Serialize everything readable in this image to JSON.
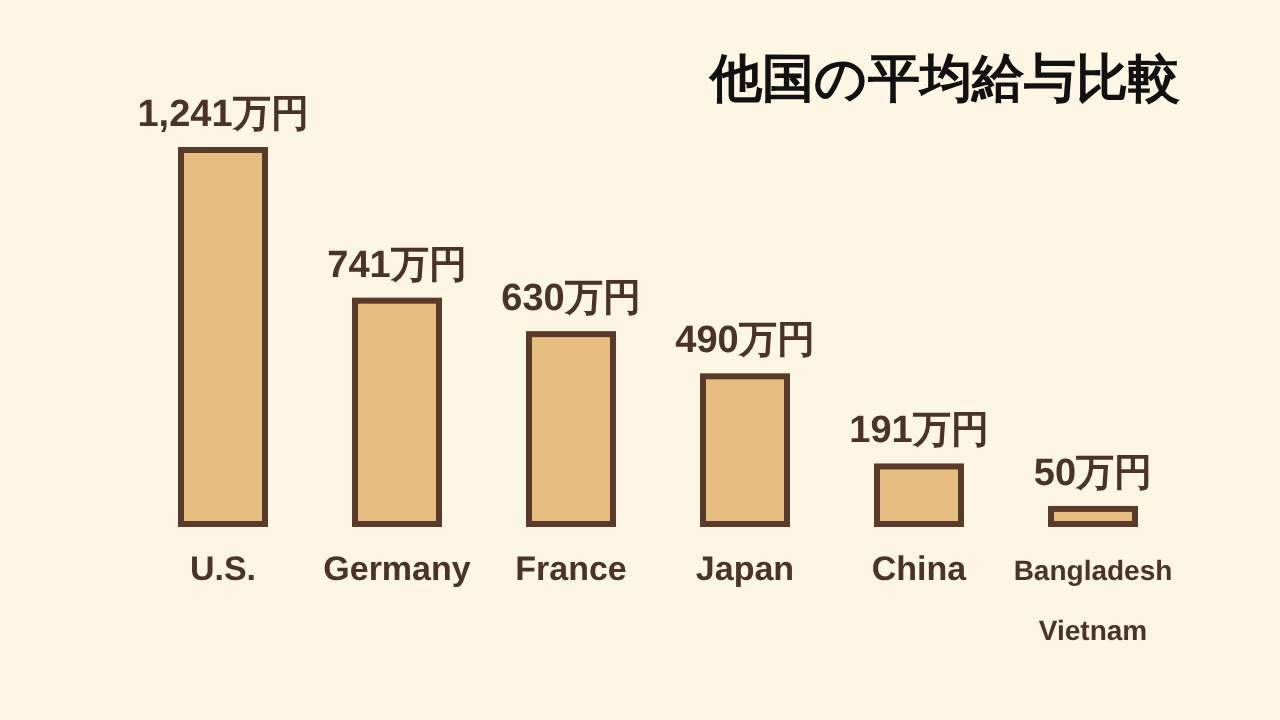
{
  "chart_data": {
    "type": "bar",
    "title": "他国の平均給与比較",
    "categories": [
      "U.S.",
      "Germany",
      "France",
      "Japan",
      "China",
      "Bangladesh\nVietnam"
    ],
    "values": [
      1241,
      741,
      630,
      490,
      191,
      50
    ],
    "value_labels": [
      "1,241万円",
      "741万円",
      "630万円",
      "490万円",
      "191万円",
      "50万円"
    ],
    "color": "#e6bd80"
  }
}
